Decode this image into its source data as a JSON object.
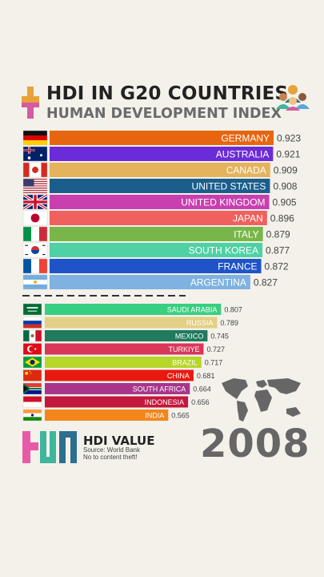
{
  "title": "HDI IN G20 COUNTRIES",
  "subtitle": "HUMAN DEVELOPMENT INDEX",
  "legend_title": "HDI VALUE",
  "source": "Source: World Bank",
  "note": "No to content theft!",
  "year": "2008",
  "colors": {
    "accent_cross_top": "#e8a23a",
    "accent_cross_bottom": "#d65aa3",
    "divider": "#333333"
  },
  "chart_data": {
    "type": "bar",
    "orientation": "horizontal",
    "scale_note": "bar length proportional to HDI value",
    "categories": [
      "GERMANY",
      "AUSTRALIA",
      "CANADA",
      "UNITED STATES",
      "UNITED KINGDOM",
      "JAPAN",
      "ITALY",
      "SOUTH KOREA",
      "FRANCE",
      "ARGENTINA",
      "SAUDI ARABIA",
      "RUSSIA",
      "MEXICO",
      "TURKIYE",
      "BRAZIL",
      "CHINA",
      "SOUTH AFRICA",
      "INDONESIA",
      "INDIA"
    ],
    "values": [
      0.923,
      0.921,
      0.909,
      0.908,
      0.905,
      0.896,
      0.879,
      0.877,
      0.872,
      0.827,
      0.807,
      0.789,
      0.745,
      0.727,
      0.717,
      0.681,
      0.664,
      0.656,
      0.565
    ],
    "value_labels": [
      "0.923",
      "0.921",
      "0.909",
      "0.908",
      "0.905",
      "0.896",
      "0.879",
      "0.877",
      "0.872",
      "0.827",
      "0.807",
      "0.789",
      "0.745",
      "0.727",
      "0.717",
      "0.681",
      "0.664",
      "0.656",
      "0.565"
    ],
    "bar_colors": [
      "#e8650f",
      "#6c2bd9",
      "#e5b35c",
      "#1b5e8c",
      "#c93faf",
      "#f0605e",
      "#79b64a",
      "#4fd1a5",
      "#1f54c8",
      "#7fb2e0",
      "#38cf80",
      "#e3cf86",
      "#1f7a5e",
      "#d9375a",
      "#b6d62a",
      "#e8190f",
      "#a8358c",
      "#c4173e",
      "#f2861c"
    ],
    "groups": [
      "top10",
      "top10",
      "top10",
      "top10",
      "top10",
      "top10",
      "top10",
      "top10",
      "top10",
      "top10",
      "rest",
      "rest",
      "rest",
      "rest",
      "rest",
      "rest",
      "rest",
      "rest",
      "rest"
    ],
    "flags": [
      "germany-flag",
      "australia-flag",
      "canada-flag",
      "usa-flag",
      "uk-flag",
      "japan-flag",
      "italy-flag",
      "south-korea-flag",
      "france-flag",
      "argentina-flag",
      "saudi-arabia-flag",
      "russia-flag",
      "mexico-flag",
      "turkiye-flag",
      "brazil-flag",
      "china-flag",
      "south-africa-flag",
      "indonesia-flag",
      "india-flag"
    ]
  }
}
